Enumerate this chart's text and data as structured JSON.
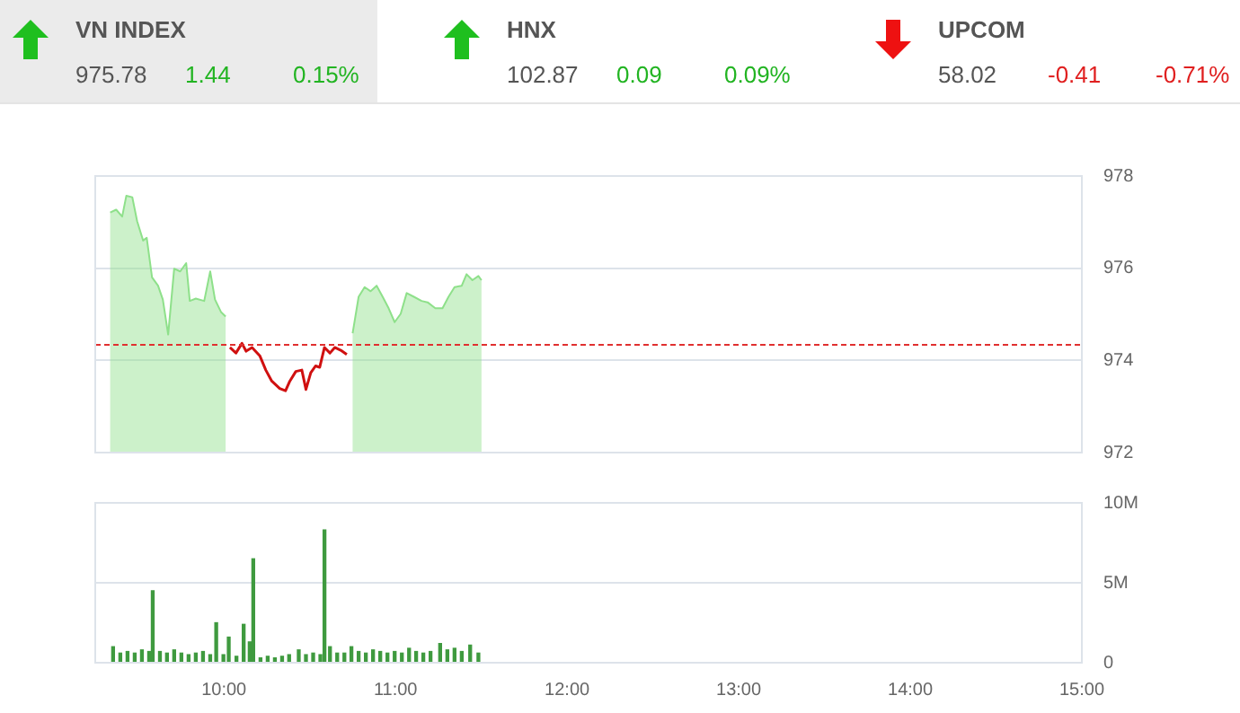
{
  "chart_data": [
    {
      "type": "other",
      "annotations": [
        "VN INDEX",
        "975.78",
        "1.44",
        "0.15%",
        "HNX",
        "102.87",
        "0.09",
        "0.09%",
        "UPCOM",
        "58.02",
        "-0.41",
        "-0.71%"
      ]
    },
    {
      "type": "area",
      "x": [
        9.337,
        9.372,
        9.407,
        9.431,
        9.466,
        9.494,
        9.529,
        9.55,
        9.581,
        9.616,
        9.644,
        9.675,
        9.71,
        9.745,
        9.78,
        9.801,
        9.836,
        9.885,
        9.92,
        9.948,
        9.983,
        10.01,
        10.035,
        10.07,
        10.105,
        10.129,
        10.164,
        10.209,
        10.244,
        10.279,
        10.325,
        10.359,
        10.384,
        10.419,
        10.454,
        10.478,
        10.506,
        10.534,
        10.558,
        10.586,
        10.618,
        10.646,
        10.681,
        10.716,
        10.75,
        10.785,
        10.82,
        10.855,
        10.89,
        10.925,
        10.96,
        10.995,
        11.03,
        11.065,
        11.107,
        11.152,
        11.187,
        11.232,
        11.274,
        11.309,
        11.344,
        11.386,
        11.414,
        11.448,
        11.483,
        11.501
      ],
      "series": [
        {
          "type": "area",
          "color": "#8ee08a",
          "values": [
            977.21,
            977.27,
            977.12,
            977.57,
            977.54,
            977.02,
            976.6,
            976.66,
            975.8,
            975.62,
            975.32,
            974.56,
            975.99,
            975.93,
            976.11,
            975.29,
            975.34,
            975.29,
            975.93,
            975.32,
            975.05,
            974.95,
            null,
            null,
            null,
            null,
            null,
            null,
            null,
            null,
            null,
            null,
            null,
            null,
            null,
            null,
            null,
            null,
            null,
            null,
            null,
            null,
            null,
            null,
            974.59,
            975.38,
            975.59,
            975.5,
            975.62,
            975.38,
            975.13,
            974.83,
            975.01,
            975.46,
            975.38,
            975.29,
            975.26,
            975.13,
            975.13,
            975.38,
            975.59,
            975.62,
            975.87,
            975.74,
            975.83,
            975.74
          ]
        },
        {
          "type": "line",
          "color": "#d01010",
          "values": [
            null,
            null,
            null,
            null,
            null,
            null,
            null,
            null,
            null,
            null,
            null,
            null,
            null,
            null,
            null,
            null,
            null,
            null,
            null,
            null,
            null,
            null,
            974.28,
            974.16,
            974.37,
            974.2,
            974.28,
            974.1,
            973.79,
            973.55,
            973.39,
            973.34,
            973.55,
            973.76,
            973.79,
            973.37,
            973.73,
            973.88,
            973.85,
            974.28,
            974.16,
            974.28,
            974.22,
            974.13,
            null,
            null,
            null,
            null,
            null,
            null,
            null,
            null,
            null,
            null,
            null,
            null,
            null,
            null,
            null,
            null,
            null,
            null,
            null,
            null,
            null,
            null
          ]
        }
      ],
      "xlim": [
        9.25,
        15
      ],
      "ylim": [
        972,
        978
      ],
      "yticks": [
        972,
        974,
        976,
        978
      ],
      "grid": "y",
      "tick_labels": "y",
      "ref_lines": [
        {
          "axis": "y",
          "value": 974.34,
          "color": "#e03030",
          "line_style": "dashed"
        }
      ]
    },
    {
      "type": "bar",
      "x": [
        9.354,
        9.396,
        9.438,
        9.48,
        9.522,
        9.564,
        9.585,
        9.627,
        9.668,
        9.71,
        9.752,
        9.794,
        9.836,
        9.878,
        9.92,
        9.955,
        9.997,
        10.028,
        10.073,
        10.115,
        10.15,
        10.171,
        10.213,
        10.255,
        10.297,
        10.339,
        10.38,
        10.436,
        10.478,
        10.52,
        10.562,
        10.586,
        10.618,
        10.66,
        10.702,
        10.743,
        10.785,
        10.827,
        10.869,
        10.911,
        10.953,
        10.995,
        11.037,
        11.079,
        11.12,
        11.162,
        11.204,
        11.26,
        11.302,
        11.344,
        11.386,
        11.435,
        11.483
      ],
      "values": [
        1000000,
        600000,
        700000,
        600000,
        800000,
        700000,
        4500000,
        700000,
        600000,
        800000,
        600000,
        500000,
        600000,
        700000,
        500000,
        2500000,
        500000,
        1600000,
        400000,
        2400000,
        1300000,
        6500000,
        300000,
        400000,
        300000,
        400000,
        500000,
        800000,
        500000,
        600000,
        500000,
        8300000,
        1000000,
        600000,
        600000,
        1000000,
        700000,
        600000,
        800000,
        700000,
        600000,
        700000,
        600000,
        900000,
        700000,
        600000,
        700000,
        1200000,
        800000,
        900000,
        700000,
        1100000,
        600000
      ],
      "color": "#3f9a3f",
      "xlim": [
        9.25,
        15
      ],
      "xticks": [
        {
          "value": 10,
          "label": "10:00"
        },
        {
          "value": 11,
          "label": "11:00"
        },
        {
          "value": 12,
          "label": "12:00"
        },
        {
          "value": 13,
          "label": "13:00"
        },
        {
          "value": 14,
          "label": "14:00"
        },
        {
          "value": 15,
          "label": "15:00"
        }
      ],
      "ylim": [
        0,
        10000000
      ],
      "yticks": [
        0,
        {
          "value": 5000000,
          "label": "5M"
        },
        {
          "value": 10000000,
          "label": "10M"
        }
      ],
      "grid": "y"
    }
  ]
}
